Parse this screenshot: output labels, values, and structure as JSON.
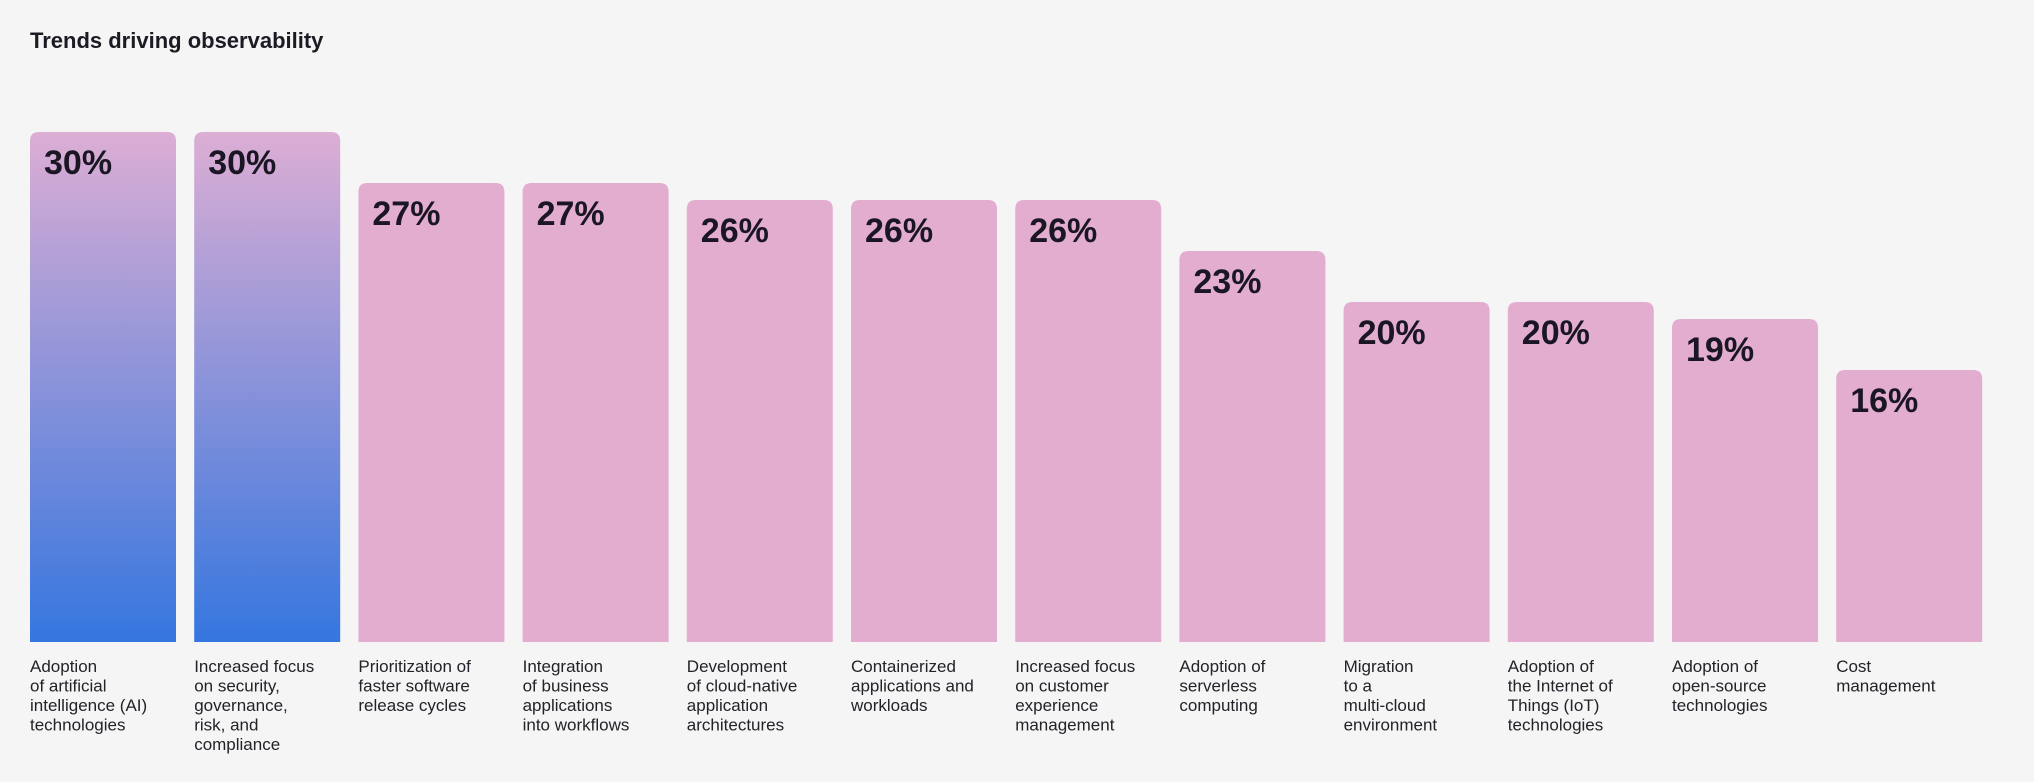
{
  "colors": {
    "background": "#f5f5f5",
    "bar_default": "#e3adcf",
    "bar_highlight_top": "#dcaed4",
    "bar_highlight_bottom": "#3576df",
    "text": "#1b1624"
  },
  "chart_data": {
    "type": "bar",
    "title": "Trends driving observability",
    "xlabel": "",
    "ylabel": "",
    "unit": "%",
    "ylim": [
      0,
      30
    ],
    "grid": false,
    "legend": "none",
    "highlighted_count": 2,
    "categories": [
      [
        "Adoption",
        "of artificial",
        "intelligence (AI)",
        "technologies"
      ],
      [
        "Increased focus",
        "on security,",
        "governance,",
        "risk, and",
        "compliance"
      ],
      [
        "Prioritization of",
        "faster software",
        "release cycles"
      ],
      [
        "Integration",
        "of business",
        "applications",
        "into workflows"
      ],
      [
        "Development",
        "of cloud-native",
        "application",
        "architectures"
      ],
      [
        "Containerized",
        "applications and",
        "workloads"
      ],
      [
        "Increased focus",
        "on customer",
        "experience",
        "management"
      ],
      [
        "Adoption of",
        "serverless",
        "computing"
      ],
      [
        "Migration",
        "to a",
        "multi-cloud",
        "environment"
      ],
      [
        "Adoption of",
        "the Internet of",
        "Things (IoT)",
        "technologies"
      ],
      [
        "Adoption of",
        "open-source",
        "technologies"
      ],
      [
        "Cost",
        "management"
      ]
    ],
    "values": [
      30,
      30,
      27,
      27,
      26,
      26,
      26,
      23,
      20,
      20,
      19,
      16
    ],
    "value_labels": [
      "30%",
      "30%",
      "27%",
      "27%",
      "26%",
      "26%",
      "26%",
      "23%",
      "20%",
      "20%",
      "19%",
      "16%"
    ]
  }
}
